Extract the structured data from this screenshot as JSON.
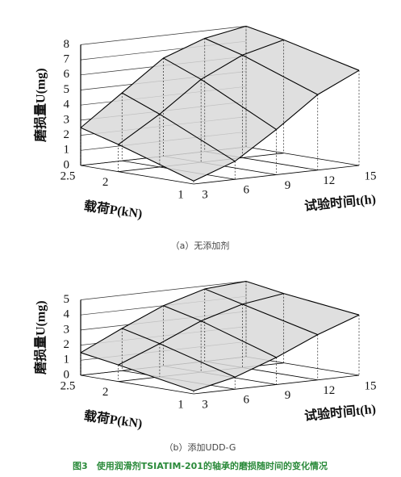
{
  "chart_data": [
    {
      "type": "surface",
      "caption": "（a）无添加剂",
      "x_label": "试验时间t(h)",
      "y_label": "载荷P(kN)",
      "z_label": "磨损量U(mg)",
      "x": [
        3,
        6,
        9,
        12,
        15
      ],
      "y": [
        1,
        2,
        2.5
      ],
      "values": [
        [
          0.2,
          1.2,
          3,
          5,
          6.3
        ],
        [
          1.8,
          3.5,
          5.5,
          6.8,
          7.5
        ],
        [
          2.5,
          4.5,
          6.5,
          7.5,
          8
        ]
      ],
      "xlim": [
        3,
        15
      ],
      "ylim": [
        1,
        2.5
      ],
      "zlim": [
        0,
        8
      ],
      "xticks": [
        3,
        6,
        9,
        12,
        15
      ],
      "yticks": [
        1,
        2,
        2.5
      ],
      "zticks": [
        0,
        1,
        2,
        3,
        4,
        5,
        6,
        7,
        8
      ],
      "color": "#d9d9d9",
      "grid": true
    },
    {
      "type": "surface",
      "caption": "（b）添加UDD-G",
      "x_label": "试验时间t(h)",
      "y_label": "载荷P(kN)",
      "z_label": "磨损量U(mg)",
      "x": [
        3,
        6,
        9,
        12,
        15
      ],
      "y": [
        1,
        2,
        2.5
      ],
      "values": [
        [
          0.2,
          0.8,
          1.8,
          3,
          4
        ],
        [
          1.1,
          2.2,
          3.4,
          4.2,
          4.6
        ],
        [
          1.5,
          2.8,
          4,
          4.8,
          5
        ]
      ],
      "xlim": [
        3,
        15
      ],
      "ylim": [
        1,
        2.5
      ],
      "zlim": [
        0,
        5
      ],
      "xticks": [
        3,
        6,
        9,
        12,
        15
      ],
      "yticks": [
        1,
        2,
        2.5
      ],
      "zticks": [
        0,
        1,
        2,
        3,
        4,
        5
      ],
      "color": "#d9d9d9",
      "grid": true
    }
  ],
  "figure_caption": "图3　使用润滑剂TSIATIM-201的轴承的磨损随时间的变化情况"
}
